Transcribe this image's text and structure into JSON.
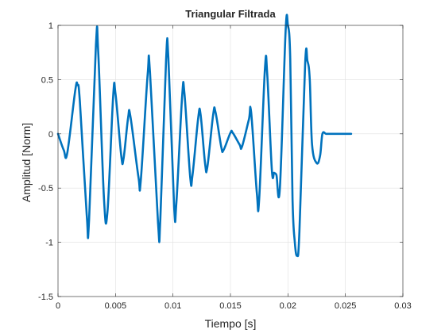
{
  "chart_data": {
    "type": "line",
    "title": "Triangular Filtrada",
    "xlabel": "Tiempo [s]",
    "ylabel": "Amplitud [Norm]",
    "xlim": [
      0,
      0.03
    ],
    "ylim": [
      -1.5,
      1
    ],
    "xticks": [
      0,
      0.005,
      0.01,
      0.015,
      0.02,
      0.025,
      0.03
    ],
    "xtick_labels": [
      "0",
      "0.005",
      "0.01",
      "0.015",
      "0.02",
      "0.025",
      "0.03"
    ],
    "yticks": [
      -1.5,
      -1,
      -0.5,
      0,
      0.5,
      1
    ],
    "ytick_labels": [
      "-1.5",
      "-1",
      "-0.5",
      "0",
      "0.5",
      "1"
    ],
    "grid": true,
    "line_color": "#0072BD",
    "series": [
      {
        "x": [
          0,
          0.0005,
          0.0008,
          0.0015,
          0.0017,
          0.0019,
          0.0025,
          0.0027,
          0.0033,
          0.0035,
          0.004,
          0.0043,
          0.0048,
          0.005,
          0.0055,
          0.0057,
          0.0061,
          0.0063,
          0.007,
          0.0072,
          0.0078,
          0.008,
          0.0087,
          0.0089,
          0.0094,
          0.0096,
          0.0101,
          0.0103,
          0.0108,
          0.011,
          0.0115,
          0.0117,
          0.0122,
          0.0124,
          0.0128,
          0.013,
          0.0135,
          0.0137,
          0.0142,
          0.0144,
          0.015,
          0.0152,
          0.0158,
          0.016,
          0.0166,
          0.0168,
          0.0173,
          0.0175,
          0.018,
          0.0182,
          0.0186,
          0.0188,
          0.019,
          0.0193,
          0.0198,
          0.02,
          0.0202,
          0.0204,
          0.0206,
          0.0208,
          0.021,
          0.0215,
          0.0217,
          0.0219,
          0.0221,
          0.0225,
          0.0228,
          0.023,
          0.0233,
          0.0235,
          0.0237,
          0.025,
          0.0255
        ],
        "y": [
          0,
          -0.15,
          -0.18,
          0.4,
          0.45,
          0.3,
          -0.75,
          -0.8,
          0.82,
          0.75,
          -0.6,
          -0.72,
          0.35,
          0.37,
          -0.2,
          -0.23,
          0.15,
          0.16,
          -0.4,
          -0.43,
          0.55,
          0.57,
          -0.82,
          -0.79,
          0.68,
          0.7,
          -0.67,
          -0.63,
          0.35,
          0.37,
          -0.4,
          -0.38,
          0.15,
          0.18,
          -0.28,
          -0.3,
          0.18,
          0.2,
          -0.12,
          -0.15,
          0.01,
          0.01,
          -0.1,
          -0.12,
          0.13,
          0.2,
          -0.55,
          -0.6,
          0.6,
          0.55,
          -0.33,
          -0.36,
          -0.38,
          -0.5,
          0.95,
          1.0,
          0.7,
          -0.6,
          -1.0,
          -1.12,
          -0.9,
          0.65,
          0.67,
          0.5,
          -0.1,
          -0.27,
          -0.2,
          0.0,
          0.0,
          0.0,
          0.0,
          0.0,
          0.0
        ]
      }
    ]
  }
}
